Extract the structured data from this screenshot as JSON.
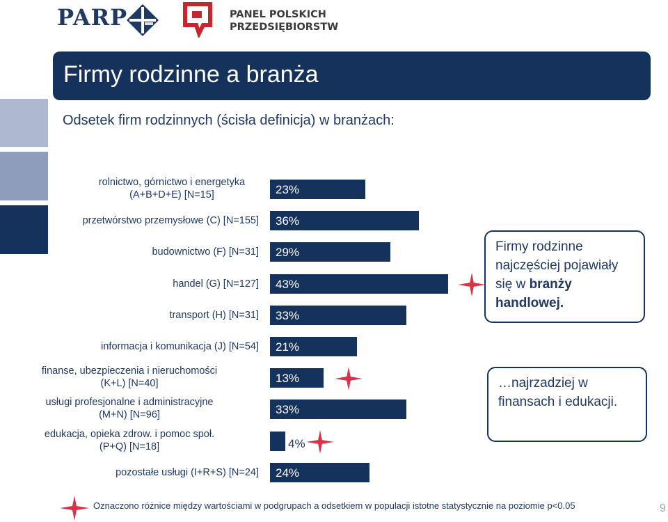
{
  "header": {
    "logo_left": "PARP",
    "logo_right_line1": "PANEL POLSKICH",
    "logo_right_line2": "PRZEDSIĘBIORSTW"
  },
  "title": "Firmy rodzinne a branża",
  "subtitle": "Odsetek firm rodzinnych (ścisła definicja) w branżach:",
  "chart_data": {
    "type": "bar",
    "orientation": "horizontal",
    "categories": [
      "rolnictwo, górnictwo i energetyka (A+B+D+E) [N=15]",
      "przetwórstwo przemysłowe (C) [N=155]",
      "budownictwo (F) [N=31]",
      "handel (G) [N=127]",
      "transport (H) [N=31]",
      "informacja i komunikacja (J) [N=54]",
      "finanse, ubezpieczenia i nieruchomości (K+L) [N=40]",
      "usługi profesjonalne i administracyjne (M+N) [N=96]",
      "edukacja, opieka zdrow. i pomoc społ. (P+Q) [N=18]",
      "pozostałe usługi (I+R+S) [N=24]"
    ],
    "category_lines": [
      [
        "rolnictwo, górnictwo i energetyka",
        "(A+B+D+E) [N=15]"
      ],
      [
        "przetwórstwo przemysłowe (C) [N=155]"
      ],
      [
        "budownictwo (F) [N=31]"
      ],
      [
        "handel (G) [N=127]"
      ],
      [
        "transport (H) [N=31]"
      ],
      [
        "informacja i komunikacja (J) [N=54]"
      ],
      [
        "finanse, ubezpieczenia i nieruchomości",
        "(K+L) [N=40]"
      ],
      [
        "usługi profesjonalne i administracyjne",
        "(M+N) [N=96]"
      ],
      [
        "edukacja, opieka zdrow. i pomoc społ.",
        "(P+Q) [N=18]"
      ],
      [
        "pozostałe usługi (I+R+S) [N=24]"
      ]
    ],
    "values": [
      23,
      36,
      29,
      43,
      33,
      21,
      13,
      33,
      4,
      24
    ],
    "labels": [
      "23%",
      "36%",
      "29%",
      "43%",
      "33%",
      "21%",
      "13%",
      "33%",
      "4%",
      "24%"
    ],
    "significant": [
      false,
      false,
      false,
      true,
      false,
      false,
      true,
      false,
      true,
      false
    ],
    "bar_color": "#15325c",
    "star_color": "#d63447"
  },
  "callouts": {
    "top_plain": "Firmy rodzinne najczęściej pojawiały się w",
    "top_bold": "branży handlowej.",
    "bottom": "…najrzadziej w finansach i edukacji."
  },
  "footnote": "Oznaczono różnice  między wartościami w podgrupach a odsetkiem w populacji istotne statystycznie na poziomie p<0.05",
  "page_number": "9",
  "colors": {
    "navy": "#15325c",
    "side_light": "#aeb8cf",
    "side_mid": "#8e9dbc",
    "side_dark": "#15325c",
    "logo_red": "#c9252c"
  }
}
